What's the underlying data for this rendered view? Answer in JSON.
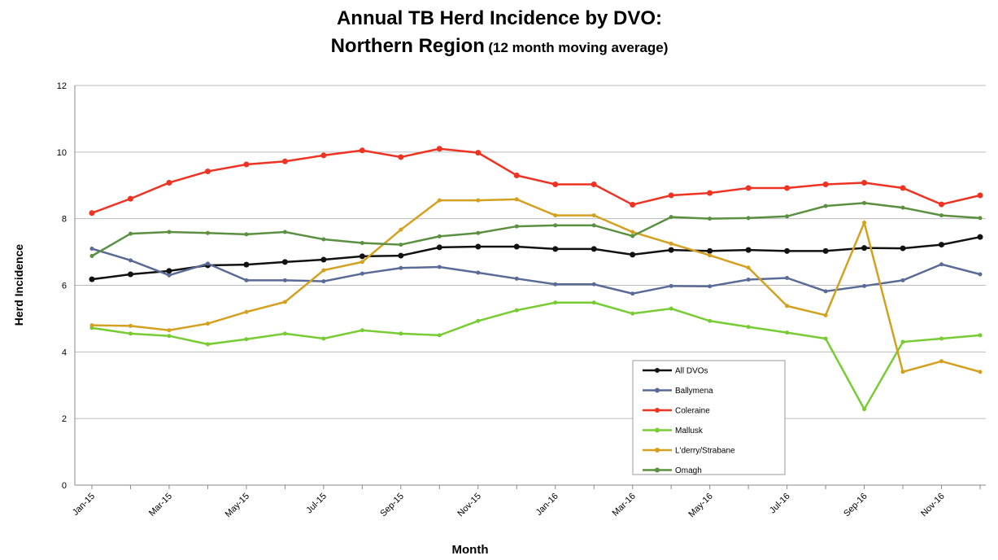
{
  "chart_data": {
    "type": "line",
    "title": "Annual TB Herd Incidence by DVO:",
    "subtitle": "Northern Region",
    "subtitle_note": "(12 month moving average)",
    "x_label": "Month",
    "y_label": "Herd Incidence",
    "categories": [
      "Jan-15",
      null,
      "Mar-15",
      null,
      "May-15",
      null,
      "Jul-15",
      null,
      "Sep-15",
      null,
      "Nov-15",
      null,
      "Jan-16",
      null,
      "Mar-16",
      null,
      "May-16",
      null,
      "Jul-16",
      null,
      "Sep-16",
      null,
      "Nov-16",
      null
    ],
    "ylim": [
      0,
      12
    ],
    "yticks": [
      0,
      2,
      4,
      6,
      8,
      10,
      12
    ],
    "grid": true,
    "legend": "lower right",
    "series": [
      {
        "name": "All DVOs",
        "color": "#111111",
        "values": [
          6.18,
          6.33,
          6.43,
          6.6,
          6.62,
          6.7,
          6.77,
          6.87,
          6.89,
          7.14,
          7.16,
          7.16,
          7.09,
          7.09,
          6.92,
          7.06,
          7.03,
          7.06,
          7.03,
          7.03,
          7.12,
          7.11,
          7.22,
          7.45
        ]
      },
      {
        "name": "Ballymena",
        "color": "#5a6a96",
        "values": [
          7.1,
          6.75,
          6.3,
          6.65,
          6.15,
          6.15,
          6.12,
          6.35,
          6.52,
          6.55,
          6.38,
          6.2,
          6.03,
          6.03,
          5.75,
          5.98,
          5.97,
          6.17,
          6.22,
          5.82,
          5.98,
          6.15,
          6.63,
          6.33
        ]
      },
      {
        "name": "Coleraine",
        "color": "#ee3322",
        "values": [
          8.17,
          8.6,
          9.08,
          9.42,
          9.63,
          9.72,
          9.9,
          10.05,
          9.85,
          10.1,
          9.98,
          9.3,
          9.03,
          9.03,
          8.42,
          8.7,
          8.77,
          8.92,
          8.92,
          9.03,
          9.08,
          8.92,
          8.43,
          8.7
        ]
      },
      {
        "name": "Mallusk",
        "color": "#77cc33",
        "values": [
          4.72,
          4.55,
          4.48,
          4.23,
          4.38,
          4.55,
          4.4,
          4.65,
          4.55,
          4.5,
          4.93,
          5.25,
          5.48,
          5.48,
          5.15,
          5.3,
          4.93,
          4.75,
          4.58,
          4.4,
          2.28,
          4.3,
          4.4,
          4.5
        ]
      },
      {
        "name": "L'derry/Strabane",
        "color": "#d4a020",
        "values": [
          4.8,
          4.78,
          4.65,
          4.85,
          5.2,
          5.5,
          6.45,
          6.7,
          7.67,
          8.55,
          8.55,
          8.58,
          8.1,
          8.1,
          7.6,
          7.25,
          6.9,
          6.53,
          5.38,
          5.1,
          7.88,
          3.4,
          3.72,
          3.4
        ]
      },
      {
        "name": "Omagh",
        "color": "#5a9040",
        "values": [
          6.88,
          7.55,
          7.6,
          7.57,
          7.53,
          7.6,
          7.38,
          7.27,
          7.22,
          7.47,
          7.57,
          7.77,
          7.8,
          7.8,
          7.48,
          8.05,
          8.0,
          8.02,
          8.07,
          8.38,
          8.47,
          8.33,
          8.1,
          8.02
        ]
      }
    ]
  }
}
